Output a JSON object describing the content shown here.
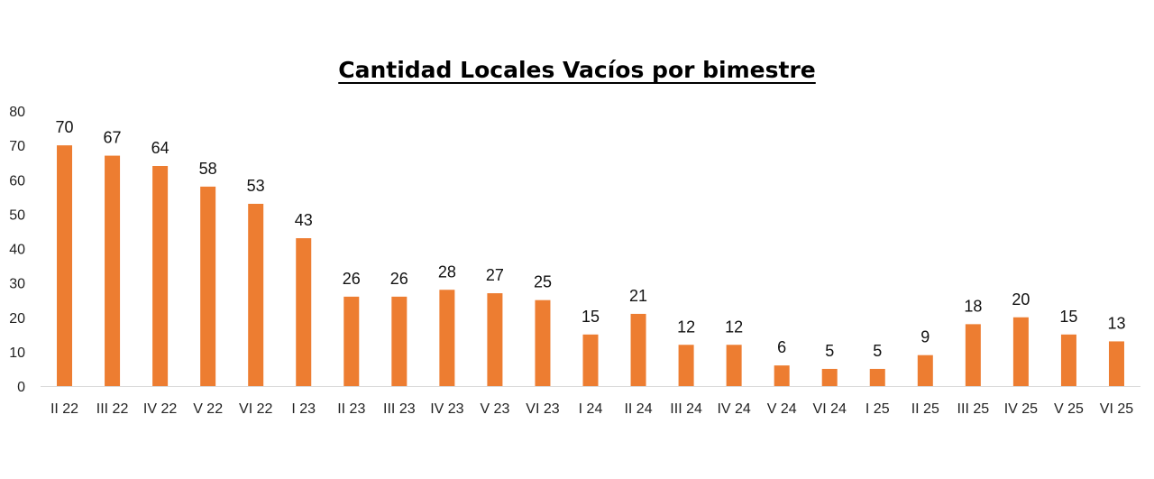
{
  "chart_data": {
    "type": "bar",
    "title": "Cantidad Locales Vacíos por bimestre",
    "xlabel": "",
    "ylabel": "",
    "ylim": [
      0,
      80
    ],
    "yticks": [
      0,
      10,
      20,
      30,
      40,
      50,
      60,
      70,
      80
    ],
    "grid": false,
    "legend": "none",
    "bar_color": "#ED7D31",
    "categories": [
      "II 22",
      "III 22",
      "IV 22",
      "V 22",
      "VI 22",
      "I 23",
      "II 23",
      "III 23",
      "IV 23",
      "V 23",
      "VI 23",
      "I 24",
      "II 24",
      "III 24",
      "IV 24",
      "V 24",
      "VI 24",
      "I 25",
      "II 25",
      "III 25",
      "IV 25",
      "V 25",
      "VI 25"
    ],
    "values": [
      70,
      67,
      64,
      58,
      53,
      43,
      26,
      26,
      28,
      27,
      25,
      15,
      21,
      12,
      12,
      6,
      5,
      5,
      9,
      18,
      20,
      15,
      13
    ]
  }
}
